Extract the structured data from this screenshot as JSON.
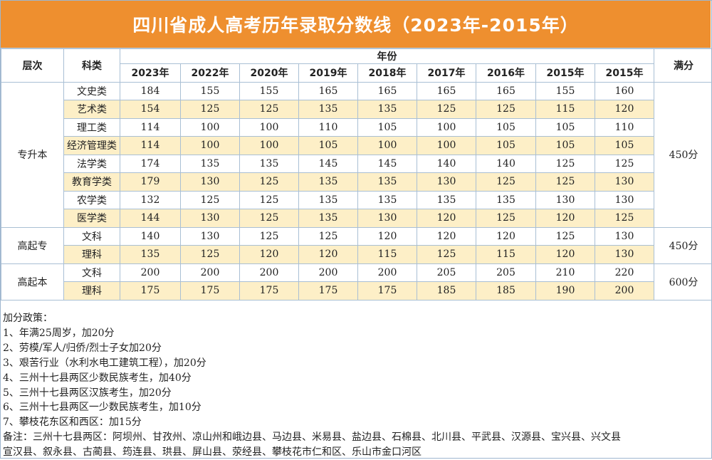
{
  "title": "四川省成人高考历年录取分数线（2023年-2015年）",
  "table": {
    "header_level": "层次",
    "header_category": "科类",
    "header_year_group": "年份",
    "header_full": "满分",
    "years": [
      "2023年",
      "2022年",
      "2020年",
      "2019年",
      "2018年",
      "2017年",
      "2016年",
      "2015年",
      "2015年"
    ],
    "groups": [
      {
        "name": "专升本",
        "full": "450分",
        "rows": [
          {
            "category": "文史类",
            "values": [
              "184",
              "155",
              "155",
              "165",
              "165",
              "165",
              "165",
              "155",
              "160"
            ]
          },
          {
            "category": "艺术类",
            "values": [
              "154",
              "125",
              "125",
              "135",
              "135",
              "125",
              "125",
              "115",
              "120"
            ]
          },
          {
            "category": "理工类",
            "values": [
              "114",
              "100",
              "100",
              "110",
              "105",
              "100",
              "105",
              "105",
              "110"
            ]
          },
          {
            "category": "经济管理类",
            "values": [
              "114",
              "100",
              "100",
              "105",
              "100",
              "100",
              "105",
              "105",
              "105"
            ]
          },
          {
            "category": "法学类",
            "values": [
              "174",
              "135",
              "135",
              "145",
              "145",
              "140",
              "140",
              "125",
              "125"
            ]
          },
          {
            "category": "教育学类",
            "values": [
              "179",
              "130",
              "125",
              "135",
              "135",
              "130",
              "125",
              "125",
              "130"
            ]
          },
          {
            "category": "农学类",
            "values": [
              "132",
              "125",
              "125",
              "135",
              "135",
              "135",
              "135",
              "130",
              "130"
            ]
          },
          {
            "category": "医学类",
            "values": [
              "144",
              "130",
              "125",
              "135",
              "130",
              "120",
              "125",
              "120",
              "125"
            ]
          }
        ]
      },
      {
        "name": "高起专",
        "full": "450分",
        "rows": [
          {
            "category": "文科",
            "values": [
              "140",
              "130",
              "125",
              "125",
              "120",
              "120",
              "120",
              "125",
              "130"
            ]
          },
          {
            "category": "理科",
            "values": [
              "135",
              "125",
              "120",
              "120",
              "115",
              "125",
              "115",
              "120",
              "130"
            ]
          }
        ]
      },
      {
        "name": "高起本",
        "full": "600分",
        "rows": [
          {
            "category": "文科",
            "values": [
              "200",
              "200",
              "200",
              "200",
              "200",
              "205",
              "205",
              "210",
              "220"
            ]
          },
          {
            "category": "理科",
            "values": [
              "175",
              "175",
              "175",
              "175",
              "175",
              "185",
              "185",
              "190",
              "200"
            ]
          }
        ]
      }
    ]
  },
  "notes": {
    "heading": "加分政策：",
    "items": [
      "1、年满25周岁，加20分",
      "2、劳模/军人/归侨/烈士子女加20分",
      "3、艰苦行业（水利水电工建筑工程），加20分",
      "4、三州十七县两区少数民族考生，加40分",
      "5、三州十七县两区汉族考生，加20分",
      "6、三州十七县两区一少数民族考生，加10分",
      "7、攀枝花东区和西区：加15分"
    ],
    "remark_line1": "备注：三州十七县两区：阿坝州、甘孜州、凉山州和峨边县、马边县、米易县、盐边县、石棉县、北川县、平武县、汉源县、宝兴县、兴文县",
    "remark_line2": "宣汉县、叙永县、古蔺县、筠连县、珙县、屏山县、荥经县、攀枝花市仁和区、乐山市金口河区"
  },
  "colors": {
    "banner": "#ee8f2f",
    "alt_row": "#fdefc7",
    "border": "#a9bfd4"
  }
}
